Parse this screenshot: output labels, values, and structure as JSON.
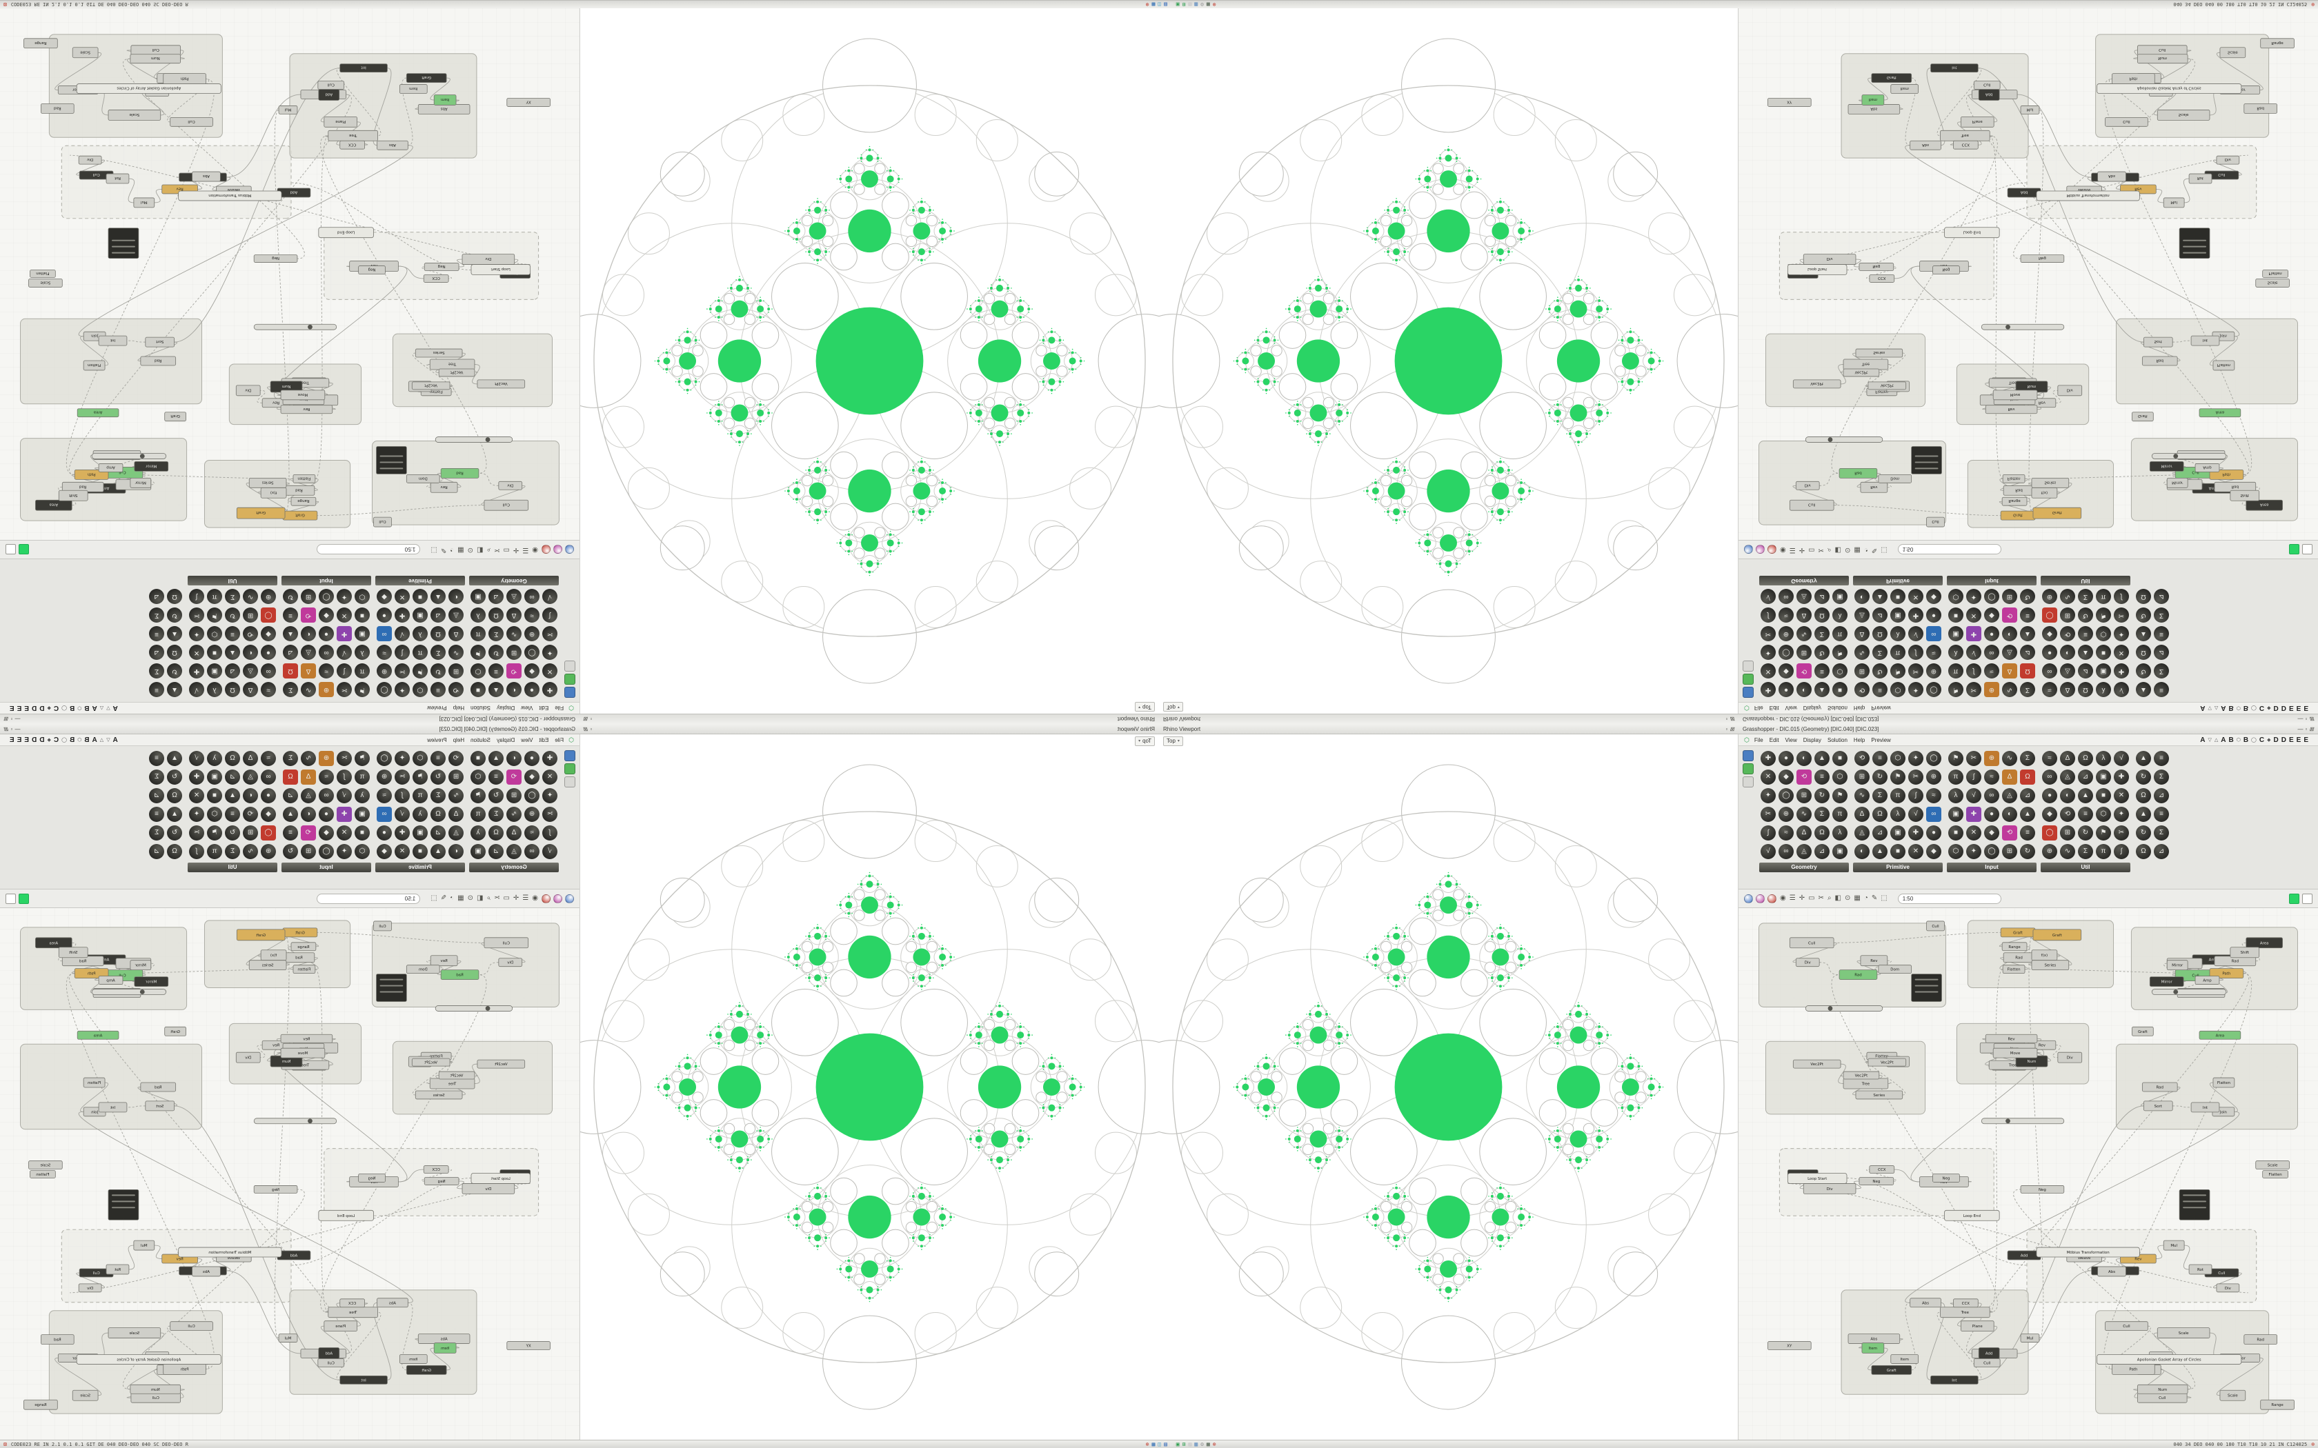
{
  "accent": {
    "green": "#2ad465",
    "green_dark": "#1fae52"
  },
  "status_bar": {
    "left_text": "CODE023 RE IN 2.1 0.1 0.1 GIT DE 040 DEO-DEO 040 SC DEO-DEO R",
    "right_text": "040 34 DEO 040 00 180 T10 T10 10 21 IN C124025",
    "close_left_glyph": "⊠",
    "close_right_glyph": "⊗",
    "icons": [
      {
        "name": "close-icon",
        "glyph": "⊗",
        "color": "#c0392b"
      },
      {
        "name": "app-icon",
        "glyph": "▦",
        "color": "#2e6db4"
      },
      {
        "name": "app-icon",
        "glyph": "◫",
        "color": "#3b9ac2"
      },
      {
        "name": "app-icon",
        "glyph": "▤",
        "color": "#2e66b8"
      },
      {
        "name": "app-icon",
        "glyph": "▧",
        "color": "#e8e8e8"
      },
      {
        "name": "app-icon",
        "glyph": "▣",
        "color": "#2e9e4f"
      },
      {
        "name": "app-icon",
        "glyph": "⊞",
        "color": "#2e9e4f"
      },
      {
        "name": "app-icon",
        "glyph": "▨",
        "color": "#c2c2c2"
      },
      {
        "name": "app-icon",
        "glyph": "▥",
        "color": "#2e6db4"
      },
      {
        "name": "gear-icon",
        "glyph": "⚙",
        "color": "#9a9a9a"
      },
      {
        "name": "app-icon",
        "glyph": "▩",
        "color": "#556655"
      },
      {
        "name": "close-icon",
        "glyph": "⊗",
        "color": "#c0392b"
      }
    ]
  },
  "titles": {
    "rhino": "Rhino Viewport",
    "grasshopper": "Grasshopper - DIC.015 (Geometry) [DIC.040] [DIC.023]"
  },
  "viewport": {
    "tab_label": "Top",
    "dropdown_glyph": "▾"
  },
  "gh": {
    "menu": [
      "File",
      "Edit",
      "View",
      "Display",
      "Solution",
      "Help",
      "Preview"
    ],
    "letter_tabs": [
      "A",
      "▽",
      "△",
      "A",
      "B",
      "⬡",
      "B",
      "◯",
      "C",
      "◆",
      "D",
      "D",
      "E",
      "E",
      "E"
    ],
    "panel_groups": [
      "Geometry",
      "Primitive",
      "Input",
      "Util"
    ],
    "search_value": "1:50",
    "icon_glyphs": [
      "✚",
      "●",
      "◐",
      "▲",
      "■",
      "✕",
      "◆",
      "⟲",
      "≡",
      "⬡",
      "✦",
      "◯",
      "⊞",
      "↻",
      "⚑",
      "✂",
      "⊕",
      "∿",
      "Σ",
      "π",
      "∫",
      "≈",
      "Δ",
      "Ω",
      "λ",
      "√",
      "∞",
      "◬",
      "⊿",
      "▣"
    ],
    "canvasbar_glyphs": [
      "◉",
      "☰",
      "✛",
      "▭",
      "✂",
      "⌕",
      "◧",
      "⊙",
      "▦",
      "◔",
      "✎",
      "⬚"
    ],
    "node_labels": [
      "Circle",
      "CCX",
      "Move",
      "Scale",
      "Mirror",
      "Series",
      "Range",
      "Cull",
      "Item",
      "Merge",
      "Graft",
      "Flatten",
      "Shift",
      "Point",
      "Vec2Pt",
      "Amp",
      "Div",
      "Len",
      "Rad",
      "Area",
      "Sort",
      "Rev",
      "f(x)",
      "Num",
      "Int",
      "Dom",
      "Tree",
      "Path",
      "Weave",
      "Rot",
      "Plane",
      "XY",
      "UnitZ",
      "Neg",
      "Abs",
      "Sub",
      "Add",
      "Mul",
      "Eq",
      "Join"
    ],
    "wide_node_labels": [
      "Loop Start",
      "Loop End",
      "Möbius Transformation",
      "Apollonian Gasket Array of Circles"
    ]
  }
}
